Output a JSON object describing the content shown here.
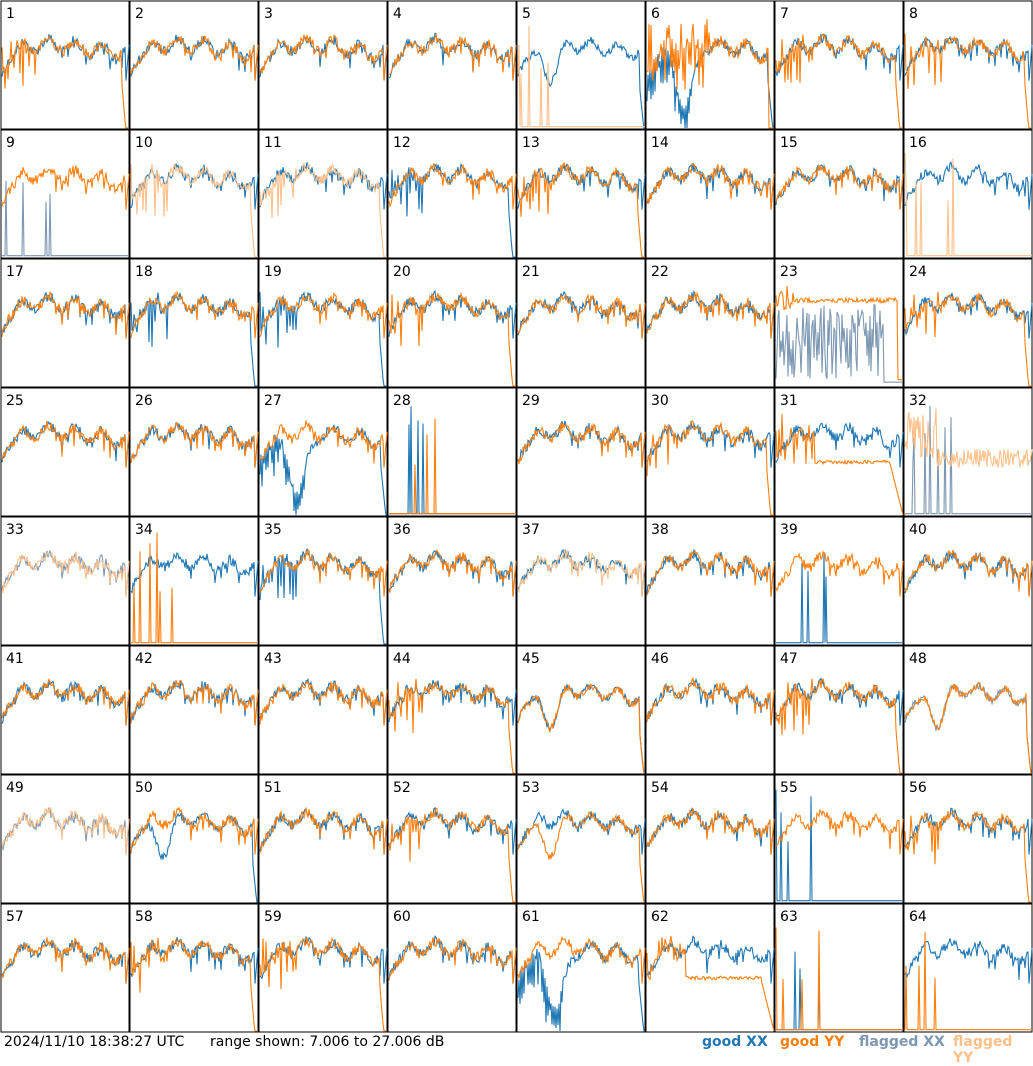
{
  "footer": {
    "timestamp": "2024/11/10 18:38:27 UTC",
    "range_text": "range shown: 7.006 to 27.006 dB"
  },
  "legend": {
    "good_xx": "good XX",
    "good_yy": "good YY",
    "flagged_xx": "flagged XX",
    "flagged_yy": "flagged YY"
  },
  "colors": {
    "good_xx": "#1f77b4",
    "good_yy": "#ff7f0e",
    "flagged_xx": "#7d98b3",
    "flagged_yy": "#ffc08a"
  },
  "chart_data": {
    "type": "line",
    "layout": "small-multiples 8x8",
    "ylim_db": [
      7.006,
      27.006
    ],
    "series_names": [
      "good XX",
      "good YY",
      "flagged XX",
      "flagged YY"
    ],
    "panels": [
      {
        "id": "1",
        "xx": {
          "status": "good",
          "shape": "normal"
        },
        "yy": {
          "status": "good",
          "shape": "dropout"
        }
      },
      {
        "id": "2",
        "xx": {
          "status": "good",
          "shape": "normal"
        },
        "yy": {
          "status": "good",
          "shape": "normal"
        }
      },
      {
        "id": "3",
        "xx": {
          "status": "good",
          "shape": "normal"
        },
        "yy": {
          "status": "good",
          "shape": "normal"
        }
      },
      {
        "id": "4",
        "xx": {
          "status": "good",
          "shape": "normal"
        },
        "yy": {
          "status": "good",
          "shape": "normal"
        }
      },
      {
        "id": "5",
        "xx": {
          "status": "good",
          "shape": "dip"
        },
        "yy": {
          "status": "flagged",
          "shape": "dead"
        }
      },
      {
        "id": "6",
        "xx": {
          "status": "good",
          "shape": "bigdip"
        },
        "yy": {
          "status": "good",
          "shape": "spiky_dropout"
        }
      },
      {
        "id": "7",
        "xx": {
          "status": "good",
          "shape": "normal"
        },
        "yy": {
          "status": "good",
          "shape": "dropout"
        }
      },
      {
        "id": "8",
        "xx": {
          "status": "good",
          "shape": "normal"
        },
        "yy": {
          "status": "good",
          "shape": "dropout"
        }
      },
      {
        "id": "9",
        "xx": {
          "status": "flagged",
          "shape": "dead"
        },
        "yy": {
          "status": "good",
          "shape": "normal"
        }
      },
      {
        "id": "10",
        "xx": {
          "status": "good",
          "shape": "normal"
        },
        "yy": {
          "status": "flagged",
          "shape": "dropout"
        }
      },
      {
        "id": "11",
        "xx": {
          "status": "good",
          "shape": "normal"
        },
        "yy": {
          "status": "flagged",
          "shape": "dropout"
        }
      },
      {
        "id": "12",
        "xx": {
          "status": "good",
          "shape": "dropout"
        },
        "yy": {
          "status": "good",
          "shape": "normal"
        }
      },
      {
        "id": "13",
        "xx": {
          "status": "good",
          "shape": "normal"
        },
        "yy": {
          "status": "good",
          "shape": "dropout"
        }
      },
      {
        "id": "14",
        "xx": {
          "status": "good",
          "shape": "normal"
        },
        "yy": {
          "status": "good",
          "shape": "normal"
        }
      },
      {
        "id": "15",
        "xx": {
          "status": "good",
          "shape": "normal"
        },
        "yy": {
          "status": "good",
          "shape": "normal"
        }
      },
      {
        "id": "16",
        "xx": {
          "status": "good",
          "shape": "normal"
        },
        "yy": {
          "status": "flagged",
          "shape": "dead"
        }
      },
      {
        "id": "17",
        "xx": {
          "status": "good",
          "shape": "normal"
        },
        "yy": {
          "status": "good",
          "shape": "normal"
        }
      },
      {
        "id": "18",
        "xx": {
          "status": "good",
          "shape": "dropout"
        },
        "yy": {
          "status": "good",
          "shape": "normal"
        }
      },
      {
        "id": "19",
        "xx": {
          "status": "good",
          "shape": "dropout"
        },
        "yy": {
          "status": "good",
          "shape": "normal"
        }
      },
      {
        "id": "20",
        "xx": {
          "status": "good",
          "shape": "normal"
        },
        "yy": {
          "status": "good",
          "shape": "dropout"
        }
      },
      {
        "id": "21",
        "xx": {
          "status": "good",
          "shape": "normal"
        },
        "yy": {
          "status": "good",
          "shape": "normal"
        }
      },
      {
        "id": "22",
        "xx": {
          "status": "good",
          "shape": "normal"
        },
        "yy": {
          "status": "good",
          "shape": "normal"
        }
      },
      {
        "id": "23",
        "xx": {
          "status": "flagged",
          "shape": "noise"
        },
        "yy": {
          "status": "good",
          "shape": "flat"
        }
      },
      {
        "id": "24",
        "xx": {
          "status": "good",
          "shape": "normal"
        },
        "yy": {
          "status": "good",
          "shape": "dropout"
        }
      },
      {
        "id": "25",
        "xx": {
          "status": "good",
          "shape": "normal"
        },
        "yy": {
          "status": "good",
          "shape": "normal"
        }
      },
      {
        "id": "26",
        "xx": {
          "status": "good",
          "shape": "normal"
        },
        "yy": {
          "status": "good",
          "shape": "normal"
        }
      },
      {
        "id": "27",
        "xx": {
          "status": "good",
          "shape": "bigdip"
        },
        "yy": {
          "status": "good",
          "shape": "normal"
        }
      },
      {
        "id": "28",
        "xx": {
          "status": "good",
          "shape": "dead"
        },
        "yy": {
          "status": "good",
          "shape": "dead"
        }
      },
      {
        "id": "29",
        "xx": {
          "status": "good",
          "shape": "normal"
        },
        "yy": {
          "status": "good",
          "shape": "normal"
        }
      },
      {
        "id": "30",
        "xx": {
          "status": "good",
          "shape": "normal"
        },
        "yy": {
          "status": "good",
          "shape": "dropout"
        }
      },
      {
        "id": "31",
        "xx": {
          "status": "good",
          "shape": "normal"
        },
        "yy": {
          "status": "good",
          "shape": "low"
        }
      },
      {
        "id": "32",
        "xx": {
          "status": "flagged",
          "shape": "dead"
        },
        "yy": {
          "status": "flagged",
          "shape": "noisy"
        }
      },
      {
        "id": "33",
        "xx": {
          "status": "flagged",
          "shape": "normal"
        },
        "yy": {
          "status": "flagged",
          "shape": "normal"
        }
      },
      {
        "id": "34",
        "xx": {
          "status": "good",
          "shape": "normal"
        },
        "yy": {
          "status": "good",
          "shape": "dead"
        }
      },
      {
        "id": "35",
        "xx": {
          "status": "good",
          "shape": "dropout"
        },
        "yy": {
          "status": "good",
          "shape": "normal"
        }
      },
      {
        "id": "36",
        "xx": {
          "status": "good",
          "shape": "normal"
        },
        "yy": {
          "status": "good",
          "shape": "normal"
        }
      },
      {
        "id": "37",
        "xx": {
          "status": "good",
          "shape": "normal"
        },
        "yy": {
          "status": "flagged",
          "shape": "normal"
        }
      },
      {
        "id": "38",
        "xx": {
          "status": "good",
          "shape": "normal"
        },
        "yy": {
          "status": "good",
          "shape": "normal"
        }
      },
      {
        "id": "39",
        "xx": {
          "status": "good",
          "shape": "dead"
        },
        "yy": {
          "status": "good",
          "shape": "normal"
        }
      },
      {
        "id": "40",
        "xx": {
          "status": "good",
          "shape": "normal"
        },
        "yy": {
          "status": "good",
          "shape": "normal"
        }
      },
      {
        "id": "41",
        "xx": {
          "status": "good",
          "shape": "normal"
        },
        "yy": {
          "status": "good",
          "shape": "normal"
        }
      },
      {
        "id": "42",
        "xx": {
          "status": "good",
          "shape": "normal"
        },
        "yy": {
          "status": "good",
          "shape": "normal"
        }
      },
      {
        "id": "43",
        "xx": {
          "status": "good",
          "shape": "normal"
        },
        "yy": {
          "status": "good",
          "shape": "normal"
        }
      },
      {
        "id": "44",
        "xx": {
          "status": "good",
          "shape": "normal"
        },
        "yy": {
          "status": "good",
          "shape": "dropout"
        }
      },
      {
        "id": "45",
        "xx": {
          "status": "good",
          "shape": "dip"
        },
        "yy": {
          "status": "good",
          "shape": "dip"
        }
      },
      {
        "id": "46",
        "xx": {
          "status": "good",
          "shape": "normal"
        },
        "yy": {
          "status": "good",
          "shape": "normal"
        }
      },
      {
        "id": "47",
        "xx": {
          "status": "good",
          "shape": "normal"
        },
        "yy": {
          "status": "good",
          "shape": "dropout"
        }
      },
      {
        "id": "48",
        "xx": {
          "status": "flagged",
          "shape": "dip"
        },
        "yy": {
          "status": "good",
          "shape": "dip"
        }
      },
      {
        "id": "49",
        "xx": {
          "status": "flagged",
          "shape": "normal"
        },
        "yy": {
          "status": "flagged",
          "shape": "normal"
        }
      },
      {
        "id": "50",
        "xx": {
          "status": "good",
          "shape": "dip"
        },
        "yy": {
          "status": "good",
          "shape": "normal"
        }
      },
      {
        "id": "51",
        "xx": {
          "status": "good",
          "shape": "normal"
        },
        "yy": {
          "status": "good",
          "shape": "normal"
        }
      },
      {
        "id": "52",
        "xx": {
          "status": "good",
          "shape": "normal"
        },
        "yy": {
          "status": "good",
          "shape": "dropout"
        }
      },
      {
        "id": "53",
        "xx": {
          "status": "good",
          "shape": "normal"
        },
        "yy": {
          "status": "good",
          "shape": "dip"
        }
      },
      {
        "id": "54",
        "xx": {
          "status": "good",
          "shape": "normal"
        },
        "yy": {
          "status": "good",
          "shape": "normal"
        }
      },
      {
        "id": "55",
        "xx": {
          "status": "good",
          "shape": "dead"
        },
        "yy": {
          "status": "good",
          "shape": "normal"
        }
      },
      {
        "id": "56",
        "xx": {
          "status": "good",
          "shape": "normal"
        },
        "yy": {
          "status": "good",
          "shape": "dropout"
        }
      },
      {
        "id": "57",
        "xx": {
          "status": "good",
          "shape": "normal"
        },
        "yy": {
          "status": "good",
          "shape": "normal"
        }
      },
      {
        "id": "58",
        "xx": {
          "status": "good",
          "shape": "normal"
        },
        "yy": {
          "status": "good",
          "shape": "dropout"
        }
      },
      {
        "id": "59",
        "xx": {
          "status": "good",
          "shape": "normal"
        },
        "yy": {
          "status": "good",
          "shape": "dropout"
        }
      },
      {
        "id": "60",
        "xx": {
          "status": "good",
          "shape": "normal"
        },
        "yy": {
          "status": "good",
          "shape": "normal"
        }
      },
      {
        "id": "61",
        "xx": {
          "status": "good",
          "shape": "bigdip"
        },
        "yy": {
          "status": "good",
          "shape": "normal"
        }
      },
      {
        "id": "62",
        "xx": {
          "status": "good",
          "shape": "normal"
        },
        "yy": {
          "status": "good",
          "shape": "low"
        }
      },
      {
        "id": "63",
        "xx": {
          "status": "good",
          "shape": "dead"
        },
        "yy": {
          "status": "good",
          "shape": "dead"
        }
      },
      {
        "id": "64",
        "xx": {
          "status": "good",
          "shape": "normal"
        },
        "yy": {
          "status": "good",
          "shape": "dead"
        }
      }
    ]
  }
}
